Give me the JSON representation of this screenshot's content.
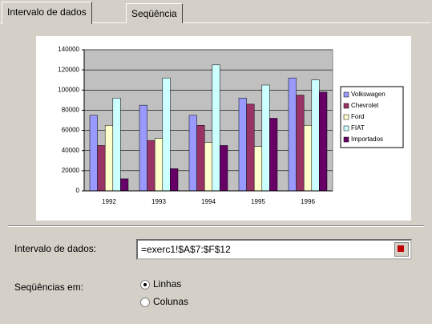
{
  "tabs": [
    "Intervalo de dados",
    "Seqüência"
  ],
  "chart_data": {
    "type": "bar",
    "categories": [
      "1992",
      "1993",
      "1994",
      "1995",
      "1996"
    ],
    "series": [
      {
        "name": "Volkswagen",
        "color": "#9999ff",
        "values": [
          75000,
          85000,
          75000,
          92000,
          112000
        ]
      },
      {
        "name": "Chevrolet",
        "color": "#993366",
        "values": [
          45000,
          50000,
          65000,
          86000,
          95000
        ]
      },
      {
        "name": "Ford",
        "color": "#ffffcc",
        "values": [
          65000,
          52000,
          48000,
          44000,
          65000
        ]
      },
      {
        "name": "FIAT",
        "color": "#ccffff",
        "values": [
          92000,
          112000,
          125000,
          105000,
          110000
        ]
      },
      {
        "name": "Importados",
        "color": "#660066",
        "values": [
          12000,
          22000,
          45000,
          72000,
          98000
        ]
      }
    ],
    "ylim": [
      0,
      140000
    ],
    "yticks": [
      0,
      20000,
      40000,
      60000,
      80000,
      100000,
      120000,
      140000
    ],
    "grid": true,
    "legend": "right"
  },
  "range": {
    "label": "Intervalo de dados:",
    "value": "=exerc1!$A$7:$F$12"
  },
  "series_in": {
    "label": "Seqüências em:",
    "options": [
      "Linhas",
      "Colunas"
    ],
    "selected": 0
  }
}
